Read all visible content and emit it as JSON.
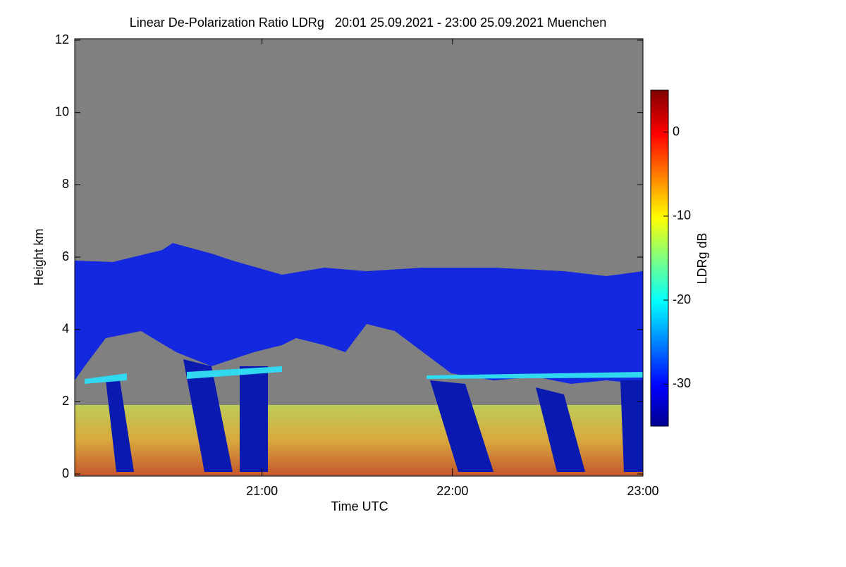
{
  "chart_data": {
    "type": "heatmap",
    "title": "Linear De-Polarization Ratio LDRg   20:01 25.09.2021 - 23:00 25.09.2021 Muenchen",
    "x_label": "Time UTC",
    "y_label": "Height km",
    "xlim": [
      20.0167,
      23.0
    ],
    "xticks": [
      {
        "value": 21,
        "label": "21:00"
      },
      {
        "value": 22,
        "label": "22:00"
      },
      {
        "value": 23,
        "label": "23:00"
      }
    ],
    "ylim": [
      0,
      12
    ],
    "yticks": [
      0,
      2,
      4,
      6,
      8,
      10,
      12
    ],
    "colorbar": {
      "label": "LDRg dB",
      "lim": [
        -35,
        5
      ],
      "ticks": [
        0,
        -10,
        -20,
        -30
      ],
      "colormap": "jet"
    },
    "background_color": "#808080"
  }
}
